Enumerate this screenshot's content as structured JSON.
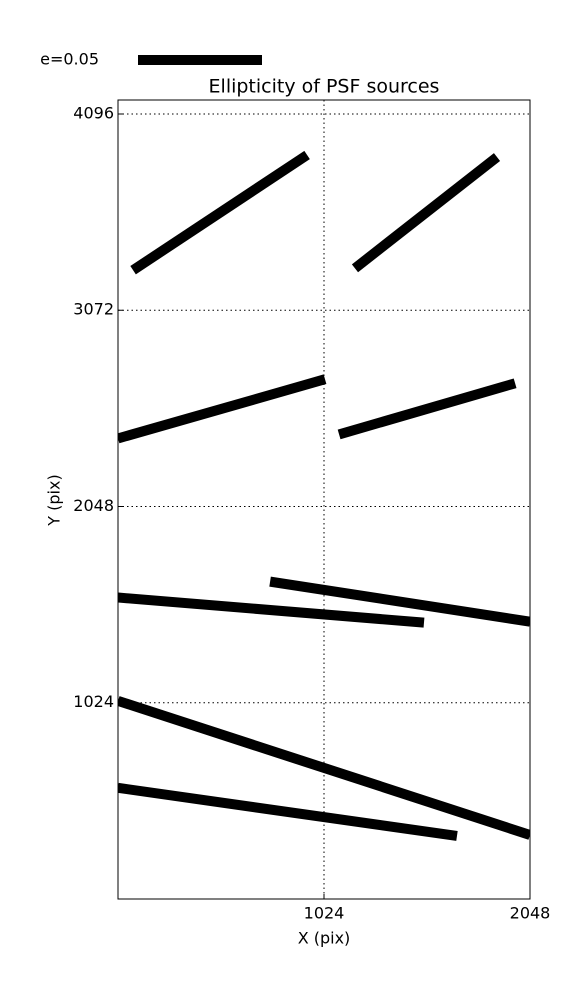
{
  "chart_data": {
    "type": "segments",
    "title": "Ellipticity of PSF sources",
    "x_label": "X (pix)",
    "y_label": "Y (pix)",
    "legend_label": "e=0.05",
    "color": "#000000",
    "xlim": [
      0,
      2048
    ],
    "ylim": [
      0,
      4169
    ],
    "xticks": [
      1024,
      2048
    ],
    "yticks": [
      1024,
      2048,
      3072,
      4096
    ],
    "grid": true,
    "segments": [
      {
        "x": [
          75,
          940
        ],
        "y": [
          3281,
          3882
        ]
      },
      {
        "x": [
          1178,
          1884
        ],
        "y": [
          3291,
          3871
        ]
      },
      {
        "x": [
          0,
          1029
        ],
        "y": [
          2403,
          2712
        ]
      },
      {
        "x": [
          1099,
          1974
        ],
        "y": [
          2424,
          2691
        ]
      },
      {
        "x": [
          0,
          1521
        ],
        "y": [
          1573,
          1442
        ]
      },
      {
        "x": [
          756,
          2048
        ],
        "y": [
          1656,
          1447
        ]
      },
      {
        "x": [
          0,
          2048
        ],
        "y": [
          1034,
          334
        ]
      },
      {
        "x": [
          0,
          1685
        ],
        "y": [
          580,
          329
        ]
      }
    ]
  }
}
